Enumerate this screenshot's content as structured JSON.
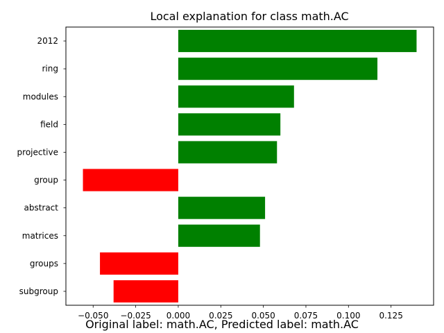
{
  "chart_data": {
    "type": "bar",
    "orientation": "horizontal",
    "title": "Local explanation for class math.AC",
    "xlabel": "",
    "ylabel": "",
    "categories": [
      "2012",
      "ring",
      "modules",
      "field",
      "projective",
      "group",
      "abstract",
      "matrices",
      "groups",
      "subgroup"
    ],
    "values": [
      0.14,
      0.117,
      0.068,
      0.06,
      0.058,
      -0.056,
      0.051,
      0.048,
      -0.046,
      -0.038
    ],
    "xlim": [
      -0.066,
      0.15
    ],
    "xticks": [
      -0.05,
      -0.025,
      0.0,
      0.025,
      0.05,
      0.075,
      0.1,
      0.125
    ],
    "xtick_labels": [
      "−0.050",
      "−0.025",
      "0.000",
      "0.025",
      "0.050",
      "0.075",
      "0.100",
      "0.125"
    ],
    "colors": {
      "positive": "#008000",
      "negative": "#ff0000"
    },
    "grid": false,
    "legend": "none"
  },
  "caption": "Original label: math.AC, Predicted label: math.AC"
}
